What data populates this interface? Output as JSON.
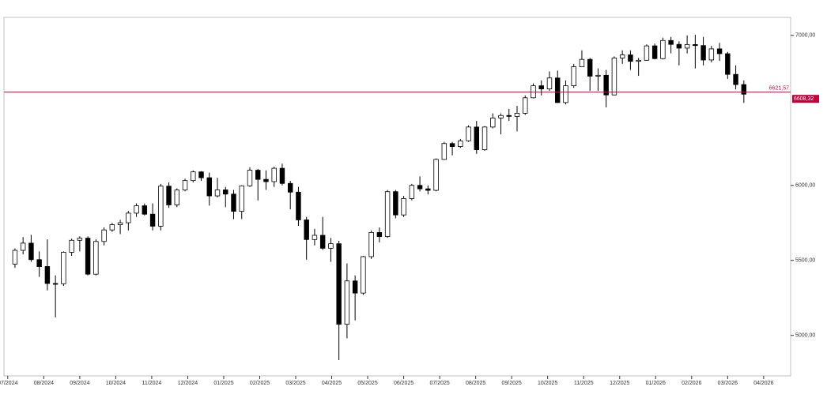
{
  "chart_data": {
    "type": "candlestick",
    "x": [
      0.2,
      0.425,
      0.65,
      0.875,
      1.1,
      1.325,
      1.55,
      1.775,
      2,
      2.225,
      2.45,
      2.675,
      2.9,
      3.125,
      3.35,
      3.575,
      3.8,
      4.025,
      4.25,
      4.475,
      4.7,
      4.925,
      5.15,
      5.375,
      5.6,
      5.825,
      6.05,
      6.275,
      6.5,
      6.725,
      6.95,
      7.175,
      7.4,
      7.625,
      7.85,
      8.075,
      8.3,
      8.525,
      8.75,
      8.975,
      9.2,
      9.425,
      9.65,
      9.875,
      10.1,
      10.325,
      10.55,
      10.775,
      11,
      11.225,
      11.45,
      11.675,
      11.9,
      12.125,
      12.35,
      12.575,
      12.8,
      13.025,
      13.25,
      13.475,
      13.7,
      13.925,
      14.15,
      14.375,
      14.6,
      14.825,
      15.05,
      15.275,
      15.5,
      15.725,
      15.95,
      16.175,
      16.4,
      16.625,
      16.85,
      17.075,
      17.3,
      17.525,
      17.75,
      17.975,
      18.2,
      18.425,
      18.65,
      18.875,
      19.1,
      19.325,
      19.55,
      19.775,
      20,
      20.225,
      20.45
    ],
    "open": [
      5475,
      5567,
      5615,
      5505,
      5459,
      5346,
      5344,
      5554,
      5634,
      5648,
      5408,
      5626,
      5703,
      5738,
      5751,
      5815,
      5864,
      5808,
      5728,
      5995,
      5870,
      5969,
      6032,
      6090,
      6051,
      5930,
      5970,
      5942,
      5827,
      5997,
      6101,
      6040,
      6025,
      6114,
      6013,
      5955,
      5770,
      5639,
      5667,
      5581,
      5611,
      5074,
      5363,
      5282,
      5525,
      5686,
      5659,
      5958,
      5803,
      5912,
      6000,
      5977,
      5967,
      6173,
      6279,
      6259,
      6297,
      6389,
      6238,
      6389,
      6449,
      6466,
      6460,
      6481,
      6584,
      6664,
      6643,
      6716,
      6552,
      6664,
      6791,
      6840,
      6728,
      6734,
      6603,
      6849,
      6870,
      6827,
      6834,
      6930,
      6845,
      6966,
      6940,
      6915,
      6939,
      6932,
      6836,
      6910,
      6878,
      6740,
      6672
    ],
    "high": [
      5580,
      5655,
      5670,
      5560,
      5640,
      5400,
      5560,
      5645,
      5660,
      5660,
      5640,
      5720,
      5750,
      5770,
      5830,
      5880,
      5880,
      5880,
      6010,
      6020,
      5980,
      6045,
      6100,
      6095,
      6085,
      6050,
      5990,
      5970,
      6000,
      6120,
      6110,
      6100,
      6125,
      6145,
      6030,
      5990,
      5790,
      5710,
      5790,
      5650,
      5630,
      5480,
      5400,
      5530,
      5700,
      5720,
      5970,
      5970,
      5930,
      6010,
      6060,
      6000,
      6180,
      6290,
      6290,
      6310,
      6400,
      6430,
      6395,
      6480,
      6480,
      6510,
      6530,
      6600,
      6680,
      6700,
      6760,
      6765,
      6700,
      6810,
      6900,
      6850,
      6780,
      6770,
      6860,
      6900,
      6900,
      6850,
      6940,
      6945,
      6985,
      6990,
      6960,
      7000,
      7005,
      6990,
      6930,
      6950,
      6890,
      6800,
      6700
    ],
    "low": [
      5450,
      5540,
      5490,
      5390,
      5300,
      5120,
      5330,
      5530,
      5560,
      5400,
      5400,
      5600,
      5690,
      5675,
      5700,
      5790,
      5800,
      5700,
      5700,
      5850,
      5855,
      5960,
      6020,
      6030,
      5865,
      5920,
      5855,
      5775,
      5775,
      5990,
      5900,
      5970,
      5990,
      6000,
      5840,
      5730,
      5505,
      5600,
      5570,
      5490,
      4835,
      4980,
      5100,
      5270,
      5510,
      5620,
      5650,
      5780,
      5790,
      5900,
      5960,
      5940,
      5960,
      6170,
      6200,
      6250,
      6290,
      6210,
      6230,
      6380,
      6340,
      6430,
      6360,
      6470,
      6580,
      6600,
      6630,
      6550,
      6540,
      6650,
      6790,
      6630,
      6630,
      6520,
      6600,
      6810,
      6770,
      6730,
      6830,
      6840,
      6840,
      6880,
      6800,
      6880,
      6780,
      6800,
      6820,
      6830,
      6710,
      6640,
      6550
    ],
    "close": [
      5567,
      5615,
      5505,
      5459,
      5346,
      5344,
      5554,
      5634,
      5648,
      5408,
      5626,
      5703,
      5738,
      5751,
      5815,
      5864,
      5808,
      5728,
      5995,
      5870,
      5969,
      6032,
      6090,
      6051,
      5930,
      5970,
      5942,
      5827,
      5997,
      6101,
      6040,
      6025,
      6114,
      6013,
      5955,
      5770,
      5639,
      5667,
      5581,
      5611,
      5074,
      5363,
      5282,
      5525,
      5686,
      5659,
      5958,
      5803,
      5912,
      6000,
      5977,
      5967,
      6173,
      6279,
      6259,
      6297,
      6389,
      6238,
      6389,
      6449,
      6466,
      6460,
      6481,
      6584,
      6664,
      6643,
      6716,
      6552,
      6664,
      6791,
      6840,
      6728,
      6734,
      6603,
      6849,
      6870,
      6827,
      6834,
      6930,
      6845,
      6966,
      6940,
      6915,
      6939,
      6932,
      6836,
      6910,
      6878,
      6740,
      6672,
      6608
    ],
    "up_color": "#ffffff",
    "down_color": "#000000",
    "wick_color": "#000000",
    "xlim": [
      -0.04,
      21.75
    ],
    "ylim": [
      4730,
      7120
    ],
    "xticks": [
      {
        "value": 0,
        "label": "07/2024"
      },
      {
        "value": 1,
        "label": "08/2024"
      },
      {
        "value": 2,
        "label": "09/2024"
      },
      {
        "value": 3,
        "label": "10/2024"
      },
      {
        "value": 4,
        "label": "11/2024"
      },
      {
        "value": 5,
        "label": "12/2024"
      },
      {
        "value": 6,
        "label": "01/2025"
      },
      {
        "value": 7,
        "label": "02/2025"
      },
      {
        "value": 8,
        "label": "03/2025"
      },
      {
        "value": 9,
        "label": "04/2025"
      },
      {
        "value": 10,
        "label": "05/2025"
      },
      {
        "value": 11,
        "label": "06/2025"
      },
      {
        "value": 12,
        "label": "07/2025"
      },
      {
        "value": 13,
        "label": "08/2025"
      },
      {
        "value": 14,
        "label": "09/2025"
      },
      {
        "value": 15,
        "label": "10/2025"
      },
      {
        "value": 16,
        "label": "11/2025"
      },
      {
        "value": 17,
        "label": "12/2025"
      },
      {
        "value": 18,
        "label": "01/2026"
      },
      {
        "value": 19,
        "label": "02/2026"
      },
      {
        "value": 20,
        "label": "03/2026"
      },
      {
        "value": 21,
        "label": "04/2026"
      }
    ],
    "yticks": [
      {
        "value": 5000,
        "label": "5000,00"
      },
      {
        "value": 5500,
        "label": "5500,00"
      },
      {
        "value": 6000,
        "label": "6000,00"
      },
      {
        "value": 7000,
        "label": "7000,00"
      }
    ],
    "hline": {
      "value": 6621.57,
      "label": "6621,57",
      "color": "#e0003c"
    },
    "last_price": {
      "value": 6608.32,
      "label": "6608,32",
      "color": "#c8003a"
    }
  }
}
